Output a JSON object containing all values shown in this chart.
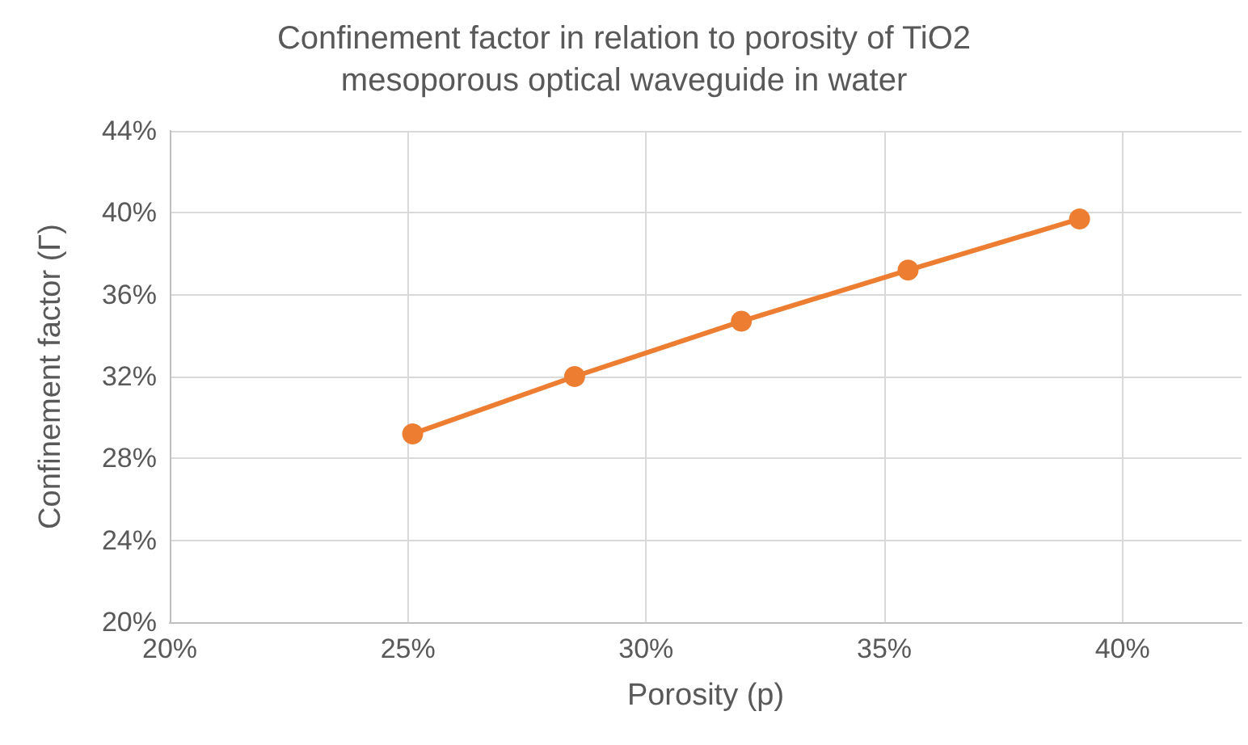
{
  "chart_data": {
    "type": "line",
    "title": "Confinement factor in relation to porosity of TiO2\nmesoporous optical waveguide in water",
    "xlabel": "Porosity (p)",
    "ylabel": "Confinement factor (Γ)",
    "x": [
      25.1,
      28.5,
      32.0,
      35.5,
      39.1
    ],
    "series": [
      {
        "color": "#ed7d31",
        "values": [
          29.2,
          32.0,
          34.7,
          37.2,
          39.7
        ]
      }
    ],
    "xlim": [
      20,
      42.5
    ],
    "xticks": [
      {
        "value": 20,
        "label": "20%"
      },
      {
        "value": 25,
        "label": "25%"
      },
      {
        "value": 30,
        "label": "30%"
      },
      {
        "value": 35,
        "label": "35%"
      },
      {
        "value": 40,
        "label": "40%"
      }
    ],
    "ylim": [
      20,
      44
    ],
    "yticks": [
      {
        "value": 20,
        "label": "20%"
      },
      {
        "value": 24,
        "label": "24%"
      },
      {
        "value": 28,
        "label": "28%"
      },
      {
        "value": 32,
        "label": "32%"
      },
      {
        "value": 36,
        "label": "36%"
      },
      {
        "value": 40,
        "label": "40%"
      },
      {
        "value": 44,
        "label": "44%"
      }
    ],
    "grid": true,
    "marker": "circle",
    "line_style": "solid"
  }
}
